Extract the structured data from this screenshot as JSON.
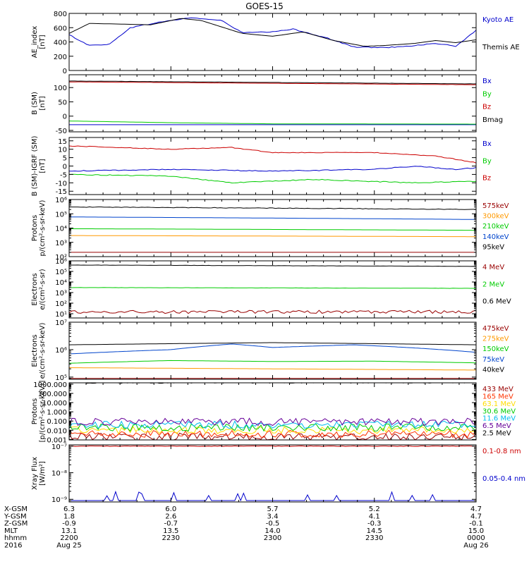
{
  "title": "GOES-15",
  "footer": {
    "rows": [
      {
        "label": "X-GSM",
        "values": [
          "6.3",
          "6.0",
          "5.7",
          "5.2",
          "4.7"
        ]
      },
      {
        "label": "Y-GSM",
        "values": [
          "1.8",
          "2.6",
          "3.4",
          "4.1",
          "4.7"
        ]
      },
      {
        "label": "Z-GSM",
        "values": [
          "-0.9",
          "-0.7",
          "-0.5",
          "-0.3",
          "-0.1"
        ]
      },
      {
        "label": "MLT",
        "values": [
          "13.1",
          "13.5",
          "14.0",
          "14.5",
          "15.0"
        ]
      },
      {
        "label": "hhmm",
        "values": [
          "2200",
          "2230",
          "2300",
          "2330",
          "0000"
        ]
      },
      {
        "label": "2016",
        "values": [
          "Aug 25",
          "",
          "",
          "",
          "Aug 26"
        ]
      }
    ]
  },
  "chart_data": [
    {
      "type": "line",
      "scale": "linear",
      "ylabel": [
        "AE_index",
        "[nT]"
      ],
      "ylim": [
        0,
        800
      ],
      "yticks": [
        0,
        200,
        400,
        600,
        800
      ],
      "ytick_labels": [
        "0",
        "200",
        "400",
        "600",
        "800"
      ],
      "x_range_hours": [
        22.0,
        24.0
      ],
      "series": [
        {
          "name": "Kyoto AE",
          "color": "#0000cc",
          "noise": 0.05,
          "knots": [
            [
              22.0,
              500
            ],
            [
              22.1,
              350
            ],
            [
              22.2,
              370
            ],
            [
              22.3,
              600
            ],
            [
              22.45,
              680
            ],
            [
              22.6,
              740
            ],
            [
              22.75,
              700
            ],
            [
              22.85,
              530
            ],
            [
              23.0,
              540
            ],
            [
              23.1,
              580
            ],
            [
              23.25,
              470
            ],
            [
              23.4,
              330
            ],
            [
              23.55,
              320
            ],
            [
              23.7,
              350
            ],
            [
              23.8,
              380
            ],
            [
              23.9,
              340
            ],
            [
              24.0,
              560
            ]
          ]
        },
        {
          "name": "Themis AE",
          "color": "#000000",
          "noise": 0.0,
          "knots": [
            [
              22.0,
              520
            ],
            [
              22.1,
              660
            ],
            [
              22.25,
              650
            ],
            [
              22.4,
              640
            ],
            [
              22.55,
              730
            ],
            [
              22.65,
              700
            ],
            [
              22.85,
              520
            ],
            [
              23.0,
              480
            ],
            [
              23.15,
              540
            ],
            [
              23.3,
              420
            ],
            [
              23.45,
              340
            ],
            [
              23.55,
              350
            ],
            [
              23.7,
              380
            ],
            [
              23.8,
              420
            ],
            [
              23.9,
              390
            ],
            [
              24.0,
              430
            ]
          ]
        }
      ]
    },
    {
      "type": "line",
      "scale": "linear",
      "ylabel": [
        "B (SM)",
        "[nT]"
      ],
      "ylim": [
        -55,
        145
      ],
      "yticks": [
        -50,
        0,
        50,
        100
      ],
      "ytick_labels": [
        "-50",
        "0",
        "50",
        "100"
      ],
      "x_range_hours": [
        22.0,
        24.0
      ],
      "series": [
        {
          "name": "Bx",
          "color": "#0000cc",
          "noise": 0.0,
          "knots": [
            [
              22.0,
              -30
            ],
            [
              24.0,
              -30
            ]
          ]
        },
        {
          "name": "By",
          "color": "#00cc00",
          "noise": 0.0,
          "knots": [
            [
              22.0,
              -17
            ],
            [
              22.5,
              -23
            ],
            [
              23.0,
              -27
            ],
            [
              24.0,
              -28
            ]
          ]
        },
        {
          "name": "Bz",
          "color": "#cc0000",
          "noise": 0.01,
          "knots": [
            [
              22.0,
              120
            ],
            [
              23.0,
              115
            ],
            [
              24.0,
              110
            ]
          ]
        },
        {
          "name": "Bmag",
          "color": "#000000",
          "noise": 0.01,
          "knots": [
            [
              22.0,
              123
            ],
            [
              23.0,
              118
            ],
            [
              24.0,
              113
            ]
          ]
        }
      ]
    },
    {
      "type": "line",
      "scale": "linear",
      "ylabel": [
        "B (SM)-IGRF (SM)",
        "[nT]"
      ],
      "ylim": [
        -17,
        17
      ],
      "yticks": [
        -15,
        -10,
        -5,
        0,
        5,
        10,
        15
      ],
      "ytick_labels": [
        "-15",
        "-10",
        "-5",
        "0",
        "5",
        "10",
        "15"
      ],
      "x_range_hours": [
        22.0,
        24.0
      ],
      "series": [
        {
          "name": "Bx",
          "color": "#0000cc",
          "noise": 0.05,
          "knots": [
            [
              22.0,
              -3
            ],
            [
              22.5,
              -2
            ],
            [
              23.0,
              -3
            ],
            [
              23.5,
              -2
            ],
            [
              23.7,
              0
            ],
            [
              23.9,
              -2
            ],
            [
              24.0,
              -1
            ]
          ]
        },
        {
          "name": "By",
          "color": "#00cc00",
          "noise": 0.05,
          "knots": [
            [
              22.0,
              -5
            ],
            [
              22.5,
              -6
            ],
            [
              22.8,
              -10
            ],
            [
              23.2,
              -8
            ],
            [
              23.7,
              -10
            ],
            [
              24.0,
              -9
            ]
          ]
        },
        {
          "name": "Bz",
          "color": "#cc0000",
          "noise": 0.04,
          "knots": [
            [
              22.0,
              12
            ],
            [
              22.5,
              10
            ],
            [
              22.8,
              11
            ],
            [
              23.0,
              8
            ],
            [
              23.5,
              8
            ],
            [
              23.8,
              6
            ],
            [
              24.0,
              2
            ]
          ]
        }
      ]
    },
    {
      "type": "line",
      "scale": "log",
      "ylabel": [
        "Protons",
        "p/(cm²-s-sr-keV)"
      ],
      "ylim_exp": [
        2,
        6
      ],
      "yticks_exp": [
        2,
        3,
        4,
        5,
        6
      ],
      "ytick_labels": [
        "10²",
        "10³",
        "10⁴",
        "10⁵",
        "10⁶"
      ],
      "x_range_hours": [
        22.0,
        24.0
      ],
      "series": [
        {
          "name": "575keV",
          "color": "#990000",
          "noise": 0.0,
          "knots": [
            [
              22.0,
              200
            ],
            [
              24.0,
              200
            ]
          ]
        },
        {
          "name": "300keV",
          "color": "#ff9900",
          "noise": 0.0,
          "knots": [
            [
              22.0,
              3000
            ],
            [
              24.0,
              2500
            ]
          ]
        },
        {
          "name": "210keV",
          "color": "#00cc00",
          "noise": 0.0,
          "knots": [
            [
              22.0,
              9000
            ],
            [
              24.0,
              7000
            ]
          ]
        },
        {
          "name": "140keV",
          "color": "#0044cc",
          "noise": 0.0,
          "knots": [
            [
              22.0,
              60000
            ],
            [
              24.0,
              40000
            ]
          ]
        },
        {
          "name": "95keV",
          "color": "#000000",
          "noise": 0.02,
          "knots": [
            [
              22.0,
              300000
            ],
            [
              24.0,
              200000
            ]
          ]
        }
      ]
    },
    {
      "type": "line",
      "scale": "log",
      "ylabel": [
        "Electrons",
        "e/(cm²-s-sr)"
      ],
      "ylim_exp": [
        0.6,
        6
      ],
      "yticks_exp": [
        1,
        2,
        3,
        4,
        5,
        6
      ],
      "ytick_labels": [
        "10¹",
        "10²",
        "10³",
        "10⁴",
        "10⁵",
        "10⁶"
      ],
      "x_range_hours": [
        22.0,
        24.0
      ],
      "series": [
        {
          "name": "4 MeV",
          "color": "#990000",
          "noise": 0.15,
          "knots": [
            [
              22.0,
              15
            ],
            [
              24.0,
              15
            ]
          ]
        },
        {
          "name": "2 MeV",
          "color": "#00cc00",
          "noise": 0.01,
          "knots": [
            [
              22.0,
              3000
            ],
            [
              24.0,
              2500
            ]
          ]
        },
        {
          "name": "0.6 MeV",
          "color": "#000000",
          "noise": 0.01,
          "knots": [
            [
              22.0,
              400000
            ],
            [
              24.0,
              300000
            ]
          ]
        }
      ]
    },
    {
      "type": "line",
      "scale": "log",
      "ylabel": [
        "Electrons",
        "e/(cm²-s-sr-keV)"
      ],
      "ylim_exp": [
        4.92,
        7
      ],
      "yticks_exp": [
        5,
        6,
        7
      ],
      "ytick_labels": [
        "10⁵",
        "10⁶",
        "10⁷"
      ],
      "x_range_hours": [
        22.0,
        24.0
      ],
      "series": [
        {
          "name": "475keV",
          "color": "#990000",
          "noise": 0.0,
          "knots": [
            [
              22.0,
              90000
            ],
            [
              24.0,
              90000
            ]
          ]
        },
        {
          "name": "275keV",
          "color": "#ff9900",
          "noise": 0.0,
          "knots": [
            [
              22.0,
              220000
            ],
            [
              23.0,
              200000
            ],
            [
              24.0,
              180000
            ]
          ]
        },
        {
          "name": "150keV",
          "color": "#00cc00",
          "noise": 0.0,
          "knots": [
            [
              22.0,
              320000
            ],
            [
              22.5,
              400000
            ],
            [
              23.0,
              370000
            ],
            [
              23.5,
              380000
            ],
            [
              24.0,
              330000
            ]
          ]
        },
        {
          "name": "75keV",
          "color": "#0044cc",
          "noise": 0.0,
          "knots": [
            [
              22.0,
              700000
            ],
            [
              22.5,
              1000000
            ],
            [
              22.8,
              1600000
            ],
            [
              23.0,
              1200000
            ],
            [
              23.4,
              1500000
            ],
            [
              24.0,
              800000
            ]
          ]
        },
        {
          "name": "40keV",
          "color": "#000000",
          "noise": 0.0,
          "knots": [
            [
              22.0,
              1500000
            ],
            [
              23.0,
              1800000
            ],
            [
              24.0,
              1500000
            ]
          ]
        }
      ]
    },
    {
      "type": "line",
      "scale": "log",
      "ylabel": [
        "Protons",
        "[p/(cm²-s-sr-keV)]"
      ],
      "ylim_exp": [
        -3.05,
        3.15
      ],
      "yticks_exp": [
        -3,
        -2,
        -1,
        0,
        1,
        2,
        3
      ],
      "ytick_labels": [
        "0.001",
        "0.010",
        "0.100",
        "1.000",
        "10.000",
        "100.000",
        "1000.000"
      ],
      "x_range_hours": [
        22.0,
        24.0
      ],
      "series": [
        {
          "name": "433 MeV",
          "color": "#990000",
          "noise": 0.4,
          "knots": [
            [
              22.0,
              0.002
            ],
            [
              24.0,
              0.002
            ]
          ]
        },
        {
          "name": "165 MeV",
          "color": "#ff3300",
          "noise": 0.4,
          "knots": [
            [
              22.0,
              0.004
            ],
            [
              24.0,
              0.004
            ]
          ]
        },
        {
          "name": "63.1 MeV",
          "color": "#ffdd00",
          "noise": 0.4,
          "knots": [
            [
              22.0,
              0.01
            ],
            [
              24.0,
              0.01
            ]
          ]
        },
        {
          "name": "30.6 MeV",
          "color": "#00cc00",
          "noise": 0.4,
          "knots": [
            [
              22.0,
              0.02
            ],
            [
              24.0,
              0.02
            ]
          ]
        },
        {
          "name": "11.6 MeV",
          "color": "#00bbee",
          "noise": 0.4,
          "knots": [
            [
              22.0,
              0.04
            ],
            [
              24.0,
              0.04
            ]
          ]
        },
        {
          "name": "6.5 MeV",
          "color": "#660099",
          "noise": 0.4,
          "knots": [
            [
              22.0,
              0.08
            ],
            [
              24.0,
              0.08
            ]
          ]
        },
        {
          "name": "2.5 MeV",
          "color": "#000000",
          "noise": 0.08,
          "knots": [
            [
              22.0,
              1500
            ],
            [
              24.0,
              1600
            ]
          ]
        }
      ]
    },
    {
      "type": "line",
      "scale": "log",
      "ylabel": [
        "Xray Flux",
        "[W/m²]"
      ],
      "ylim_exp": [
        -9.1,
        -6.95
      ],
      "yticks_exp": [
        -9,
        -8,
        -7
      ],
      "ytick_labels": [
        "10⁻⁹",
        "10⁻⁸",
        "10⁻⁷"
      ],
      "x_range_hours": [
        22.0,
        24.0
      ],
      "series": [
        {
          "name": "0.1-0.8 nm",
          "color": "#cc0000",
          "noise": 0.01,
          "knots": [
            [
              22.0,
              1e-07
            ],
            [
              24.0,
              1e-07
            ]
          ]
        },
        {
          "name": "0.05-0.4 nm",
          "color": "#0000cc",
          "noise": 0.0,
          "spikes": true,
          "knots": [
            [
              22.0,
              9e-10
            ],
            [
              24.0,
              9e-10
            ]
          ]
        }
      ]
    }
  ]
}
